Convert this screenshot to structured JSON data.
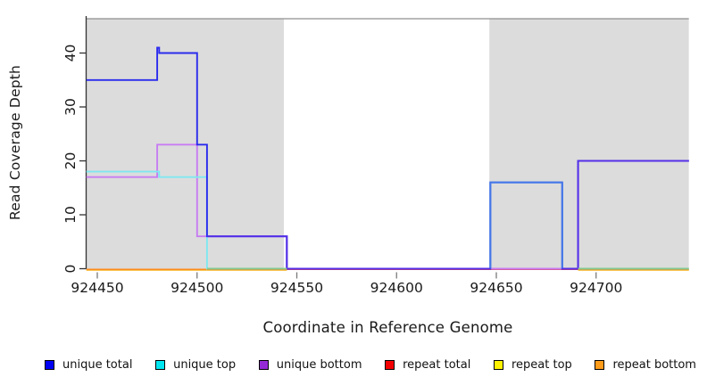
{
  "titles": {
    "x": "Coordinate in Reference Genome",
    "y": "Read Coverage Depth"
  },
  "legend": {
    "items": [
      {
        "label": "unique total",
        "color": "#0000f5"
      },
      {
        "label": "unique top",
        "color": "#00e6f0"
      },
      {
        "label": "unique bottom",
        "color": "#9429d6"
      },
      {
        "label": "repeat total",
        "color": "#f50000"
      },
      {
        "label": "repeat top",
        "color": "#fff200"
      },
      {
        "label": "repeat bottom",
        "color": "#ff9c1a"
      }
    ]
  },
  "chart_data": {
    "type": "line",
    "subtype": "step-coverage",
    "title": "",
    "xlabel": "Coordinate in Reference Genome",
    "ylabel": "Read Coverage Depth",
    "x_domain": [
      924444.5,
      924746.5
    ],
    "y_domain": [
      0,
      46.8
    ],
    "x_ticks": [
      924450,
      924500,
      924550,
      924600,
      924650,
      924700
    ],
    "y_ticks": [
      0,
      10,
      20,
      30,
      40
    ],
    "grid": false,
    "legend_position": "bottom",
    "shaded_regions": [
      {
        "x1": 924444.5,
        "x2": 924543.5,
        "color": "#dcdcdc"
      },
      {
        "x1": 924646.5,
        "x2": 924746.5,
        "color": "#dcdcdc"
      }
    ],
    "series": [
      {
        "name": "unique total",
        "color": "#0000ee",
        "steps": [
          [
            924444.5,
            35
          ],
          [
            924480,
            41
          ],
          [
            924481,
            40
          ],
          [
            924500,
            23
          ],
          [
            924505,
            6
          ],
          [
            924545,
            0
          ],
          [
            924647,
            16
          ],
          [
            924683,
            0
          ],
          [
            924691,
            20
          ]
        ]
      },
      {
        "name": "unique top",
        "color": "#00eeee",
        "steps": [
          [
            924444.5,
            18
          ],
          [
            924481,
            17
          ],
          [
            924505,
            0
          ],
          [
            924647,
            16
          ],
          [
            924683,
            0
          ]
        ]
      },
      {
        "name": "unique bottom",
        "color": "#9932cc",
        "steps": [
          [
            924444.5,
            17
          ],
          [
            924480,
            23
          ],
          [
            924500,
            6
          ],
          [
            924545,
            0
          ],
          [
            924691,
            20
          ]
        ]
      },
      {
        "name": "repeat total",
        "color": "#ee0000",
        "steps": [
          [
            924444.5,
            0
          ]
        ]
      },
      {
        "name": "repeat top",
        "color": "#ffff00",
        "steps": [
          [
            924444.5,
            0
          ]
        ]
      },
      {
        "name": "repeat bottom",
        "color": "#ff8c1a",
        "steps": [
          [
            924444.5,
            0
          ]
        ]
      }
    ],
    "render_layers": [
      {
        "name": "repeat-top-line",
        "color": "#f0e152",
        "offset": 1.4,
        "paths": [
          {
            "pts": [
              [
                924444.5,
                0
              ],
              [
                924545,
                0
              ]
            ],
            "ext": false
          },
          {
            "pts": [
              [
                924691,
                0
              ],
              [
                924746.5,
                0
              ]
            ],
            "ext": false
          }
        ]
      },
      {
        "name": "repeat-bottom-line",
        "color": "#ff8c1a",
        "offset": 0.9,
        "paths": [
          {
            "pts": [
              [
                924444.5,
                0
              ],
              [
                924545,
                0
              ]
            ],
            "ext": false
          },
          {
            "pts": [
              [
                924691,
                0
              ],
              [
                924746.5,
                0
              ]
            ],
            "ext": false
          }
        ]
      },
      {
        "name": "repeat-total-line",
        "color": "#dc4055",
        "offset": 0.5,
        "paths": [
          {
            "pts": [
              [
                924545,
                0
              ],
              [
                924691,
                0
              ]
            ],
            "ext": false
          }
        ]
      },
      {
        "name": "unique-bottom-line",
        "color": "#c77df2",
        "offset": 0,
        "paths": [
          {
            "pts": [
              [
                924444.5,
                17
              ],
              [
                924480,
                23
              ],
              [
                924500,
                6
              ],
              [
                924545,
                0
              ],
              [
                924691,
                20
              ]
            ],
            "ext": true
          }
        ]
      },
      {
        "name": "unique-top-line",
        "color": "#7fe8f0",
        "offset": 0,
        "paths": [
          {
            "pts": [
              [
                924444.5,
                18
              ],
              [
                924481,
                17
              ],
              [
                924505,
                0
              ],
              [
                924647,
                16
              ],
              [
                924683,
                0
              ]
            ],
            "ext": true
          }
        ]
      },
      {
        "name": "unique-total-line",
        "color": "#2b2bee",
        "offset": 0,
        "paths": [
          {
            "pts": [
              [
                924444.5,
                35
              ],
              [
                924480,
                41
              ],
              [
                924481,
                40
              ],
              [
                924500,
                23
              ],
              [
                924505,
                6
              ],
              [
                924545,
                0
              ],
              [
                924647,
                16
              ],
              [
                924683,
                0
              ],
              [
                924691,
                20
              ]
            ],
            "ext": true
          }
        ]
      },
      {
        "name": "total-top-overlap",
        "color": "#4678e8",
        "offset": 0,
        "paths": [
          {
            "pts": [
              [
                924647,
                0
              ],
              [
                924647,
                16
              ],
              [
                924683,
                16
              ],
              [
                924683,
                0
              ]
            ],
            "ext": false
          }
        ]
      },
      {
        "name": "total-bottom-overlap",
        "color": "#5530e8",
        "offset": 0,
        "paths": [
          {
            "pts": [
              [
                924505,
                6
              ],
              [
                924545,
                6
              ],
              [
                924545,
                0
              ],
              [
                924647,
                0
              ]
            ],
            "ext": false
          },
          {
            "pts": [
              [
                924683,
                0
              ],
              [
                924691,
                0
              ],
              [
                924691,
                20
              ],
              [
                924746.5,
                20
              ]
            ],
            "ext": false
          }
        ]
      },
      {
        "name": "top-repeat-overlap-zero",
        "color": "#85c98f",
        "offset": 0,
        "paths": [
          {
            "pts": [
              [
                924505,
                0
              ],
              [
                924545,
                0
              ]
            ],
            "ext": false
          },
          {
            "pts": [
              [
                924691,
                0
              ],
              [
                924746.5,
                0
              ]
            ],
            "ext": false
          }
        ]
      }
    ]
  }
}
